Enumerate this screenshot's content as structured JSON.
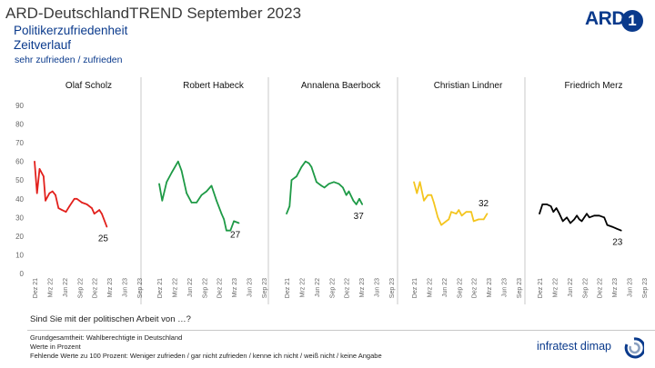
{
  "header": {
    "title": "ARD-DeutschlandTREND September 2023",
    "subtitle1": "Politikerzufriedenheit",
    "subtitle2": "Zeitverlauf",
    "subtitle3": "sehr zufrieden / zufrieden"
  },
  "logo": {
    "text": "ARD",
    "mark": "1"
  },
  "question": "Sind Sie mit der politischen Arbeit von …?",
  "footer": {
    "line1": "Grundgesamtheit: Wahlberechtigte in Deutschland",
    "line2": "Werte in Prozent",
    "line3": "Fehlende Werte zu 100 Prozent: Weniger zufrieden / gar nicht zufrieden / kenne ich nicht / weiß nicht / keine Angabe"
  },
  "brand": {
    "text": "infratest dimap"
  },
  "colors": {
    "primary": "#0a3a8c",
    "scholz": "#e2201c",
    "habeck": "#1e9a46",
    "baerbock": "#1e9a46",
    "lindner": "#f4c51e",
    "merz": "#000000"
  },
  "chart_data": {
    "type": "line",
    "ylim": [
      0,
      90
    ],
    "yticks": [
      0,
      10,
      20,
      30,
      40,
      50,
      60,
      70,
      80,
      90
    ],
    "xticks": [
      "Dez 21",
      "Mrz 22",
      "Jun 22",
      "Sep 22",
      "Dez 22",
      "Mrz 23",
      "Jun 23",
      "Sep 23"
    ],
    "x_range_months": [
      0,
      21
    ],
    "series": [
      {
        "name": "Olaf Scholz",
        "color": "#e2201c",
        "end_label": "25",
        "points": [
          [
            0,
            60
          ],
          [
            0.5,
            43
          ],
          [
            1,
            56
          ],
          [
            1.8,
            52
          ],
          [
            2.2,
            39
          ],
          [
            3,
            43
          ],
          [
            3.6,
            44
          ],
          [
            4.2,
            42
          ],
          [
            4.8,
            35
          ],
          [
            5.5,
            34
          ],
          [
            6.3,
            33
          ],
          [
            7,
            36
          ],
          [
            8,
            40
          ],
          [
            8.5,
            40
          ],
          [
            9.5,
            38
          ],
          [
            10.5,
            37
          ],
          [
            11.5,
            35
          ],
          [
            12,
            32
          ],
          [
            13,
            34
          ],
          [
            13.5,
            32
          ],
          [
            14.5,
            25
          ]
        ]
      },
      {
        "name": "Robert Habeck",
        "color": "#1e9a46",
        "end_label": "27",
        "points": [
          [
            0,
            48
          ],
          [
            0.6,
            39
          ],
          [
            1.5,
            49
          ],
          [
            2.5,
            54
          ],
          [
            3.8,
            60
          ],
          [
            4.5,
            55
          ],
          [
            5.5,
            43
          ],
          [
            6.5,
            38
          ],
          [
            7.5,
            38
          ],
          [
            8.5,
            42
          ],
          [
            9.5,
            44
          ],
          [
            10.5,
            47
          ],
          [
            11.5,
            39
          ],
          [
            12.5,
            32
          ],
          [
            13,
            29
          ],
          [
            13.5,
            23
          ],
          [
            14.3,
            23
          ],
          [
            15,
            28
          ],
          [
            16,
            27
          ]
        ]
      },
      {
        "name": "Annalena Baerbock",
        "color": "#1e9a46",
        "end_label": "37",
        "points": [
          [
            0,
            32
          ],
          [
            0.6,
            36
          ],
          [
            1,
            50
          ],
          [
            2,
            52
          ],
          [
            3,
            57
          ],
          [
            3.8,
            60
          ],
          [
            4.5,
            59
          ],
          [
            5,
            57
          ],
          [
            6,
            49
          ],
          [
            7,
            47
          ],
          [
            7.6,
            46
          ],
          [
            8.5,
            48
          ],
          [
            9.5,
            49
          ],
          [
            10.5,
            48
          ],
          [
            11.3,
            46
          ],
          [
            12,
            42
          ],
          [
            12.5,
            44
          ],
          [
            13.4,
            39
          ],
          [
            14,
            37
          ],
          [
            14.6,
            40
          ],
          [
            15.2,
            37
          ]
        ]
      },
      {
        "name": "Christian Lindner",
        "color": "#f4c51e",
        "end_label": "32",
        "points": [
          [
            0,
            49
          ],
          [
            0.6,
            43
          ],
          [
            1.2,
            49
          ],
          [
            2,
            39
          ],
          [
            2.8,
            42
          ],
          [
            3.5,
            42
          ],
          [
            4,
            38
          ],
          [
            4.8,
            30
          ],
          [
            5.5,
            26
          ],
          [
            6.5,
            28
          ],
          [
            7,
            29
          ],
          [
            7.5,
            33
          ],
          [
            8.5,
            32
          ],
          [
            9,
            34
          ],
          [
            9.6,
            31
          ],
          [
            10.5,
            33
          ],
          [
            11.5,
            33
          ],
          [
            12,
            28
          ],
          [
            13,
            29
          ],
          [
            14,
            29
          ],
          [
            14.7,
            32
          ]
        ]
      },
      {
        "name": "Friedrich Merz",
        "color": "#000000",
        "end_label": "23",
        "points": [
          [
            0,
            32
          ],
          [
            0.6,
            37
          ],
          [
            1.5,
            37
          ],
          [
            2.3,
            36
          ],
          [
            2.8,
            33
          ],
          [
            3.4,
            35
          ],
          [
            4,
            32
          ],
          [
            4.7,
            28
          ],
          [
            5.5,
            30
          ],
          [
            6.2,
            27
          ],
          [
            7,
            29
          ],
          [
            7.5,
            31
          ],
          [
            8,
            29
          ],
          [
            8.5,
            28
          ],
          [
            9.5,
            32
          ],
          [
            10,
            30
          ],
          [
            11,
            31
          ],
          [
            12,
            31
          ],
          [
            13,
            30
          ],
          [
            13.6,
            26
          ],
          [
            14.6,
            25
          ],
          [
            15.5,
            24
          ],
          [
            16.4,
            23
          ]
        ]
      }
    ]
  }
}
